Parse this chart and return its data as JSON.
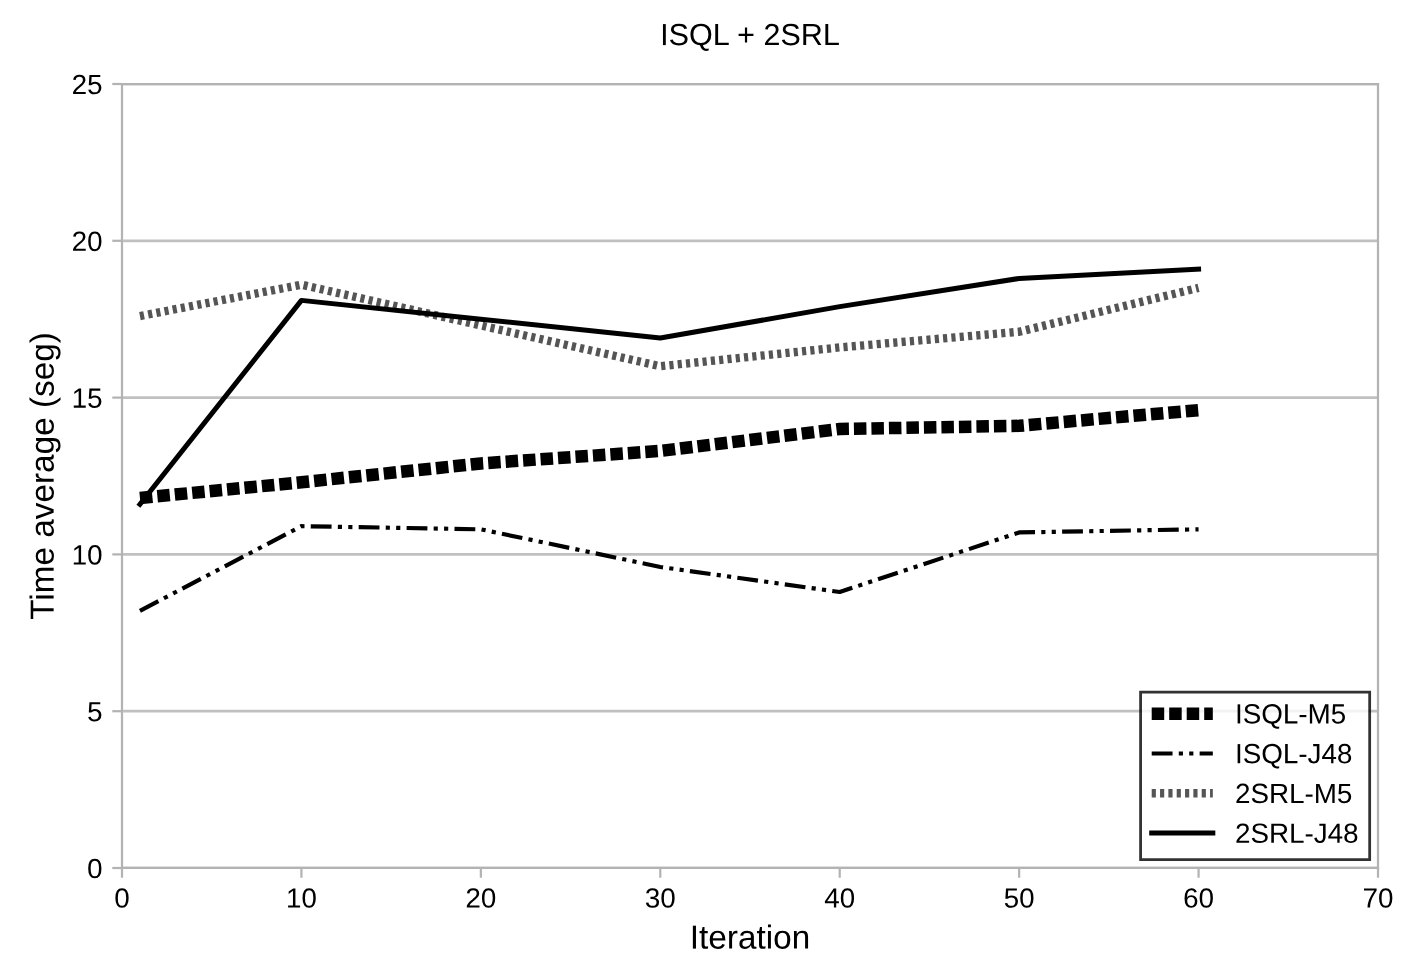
{
  "chart_data": {
    "type": "line",
    "title": "ISQL + 2SRL",
    "xlabel": "Iteration",
    "ylabel": "Time average (seg)",
    "x": [
      1,
      10,
      20,
      30,
      40,
      50,
      60
    ],
    "series": [
      {
        "name": "ISQL-M5",
        "color": "#000000",
        "line_style": "dotted",
        "values": [
          11.8,
          12.3,
          12.9,
          13.3,
          14.0,
          14.1,
          14.6
        ]
      },
      {
        "name": "ISQL-J48",
        "color": "#000000",
        "line_style": "dashdot",
        "values": [
          8.2,
          10.9,
          10.8,
          9.6,
          8.8,
          10.7,
          10.8
        ]
      },
      {
        "name": "2SRL-M5",
        "color": "#555555",
        "line_style": "dotted",
        "values": [
          17.6,
          18.6,
          17.3,
          16.0,
          16.6,
          17.1,
          18.5
        ]
      },
      {
        "name": "2SRL-J48",
        "color": "#000000",
        "line_style": "solid",
        "values": [
          11.6,
          18.1,
          17.5,
          16.9,
          17.9,
          18.8,
          19.1
        ]
      }
    ],
    "xlim": [
      0,
      70
    ],
    "xticks": [
      0,
      10,
      20,
      30,
      40,
      50,
      60,
      70
    ],
    "ylim": [
      0,
      25
    ],
    "yticks": [
      0,
      5,
      10,
      15,
      20,
      25
    ],
    "grid": "y",
    "legend": "bottom right",
    "marker": "none"
  }
}
